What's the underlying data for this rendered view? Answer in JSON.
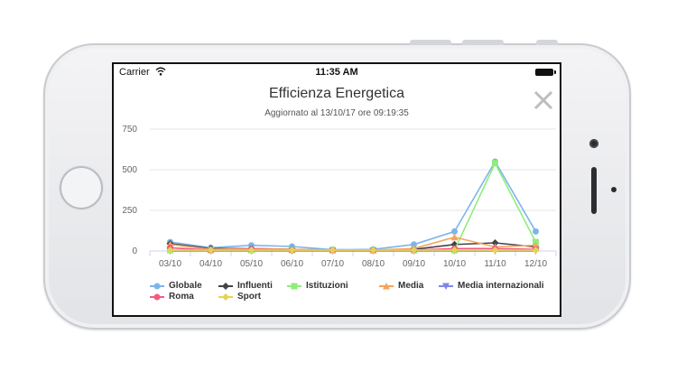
{
  "device": {
    "model": "iPhone",
    "orientation": "landscape"
  },
  "status_bar": {
    "carrier": "Carrier",
    "time": "11:35 AM"
  },
  "header": {
    "close_icon": "close-icon"
  },
  "chart_data": {
    "type": "line",
    "title": "Efficienza Energetica",
    "subtitle": "Aggiornato al 13/10/17 ore 09:19:35",
    "xlabel": "",
    "ylabel": "",
    "categories": [
      "03/10",
      "04/10",
      "05/10",
      "06/10",
      "07/10",
      "08/10",
      "09/10",
      "10/10",
      "11/10",
      "12/10"
    ],
    "y_ticks": [
      "750",
      "500",
      "250",
      "0"
    ],
    "ylim": [
      0,
      750
    ],
    "grid": true,
    "legend_position": "bottom",
    "series": [
      {
        "name": "Globale",
        "color": "#7cb5ec",
        "marker": "circle",
        "values": [
          55,
          20,
          35,
          28,
          8,
          10,
          40,
          120,
          550,
          120
        ]
      },
      {
        "name": "Influenti",
        "color": "#434348",
        "marker": "diamond",
        "values": [
          45,
          15,
          15,
          10,
          5,
          5,
          10,
          40,
          50,
          25
        ]
      },
      {
        "name": "Istituzioni",
        "color": "#90ed7d",
        "marker": "square",
        "values": [
          5,
          5,
          5,
          5,
          5,
          5,
          5,
          5,
          540,
          55
        ]
      },
      {
        "name": "Media",
        "color": "#f7a35c",
        "marker": "triangle",
        "values": [
          40,
          10,
          15,
          10,
          5,
          5,
          15,
          85,
          25,
          35
        ]
      },
      {
        "name": "Media internazionali",
        "color": "#8085e9",
        "marker": "triangle-down",
        "values": [
          0,
          0,
          0,
          0,
          0,
          0,
          0,
          0,
          0,
          0
        ]
      },
      {
        "name": "Roma",
        "color": "#f15c80",
        "marker": "circle",
        "values": [
          20,
          5,
          10,
          5,
          5,
          5,
          5,
          15,
          15,
          10
        ]
      },
      {
        "name": "Sport",
        "color": "#e4d354",
        "marker": "diamond",
        "values": [
          5,
          5,
          5,
          5,
          5,
          5,
          5,
          5,
          5,
          5
        ]
      }
    ]
  }
}
